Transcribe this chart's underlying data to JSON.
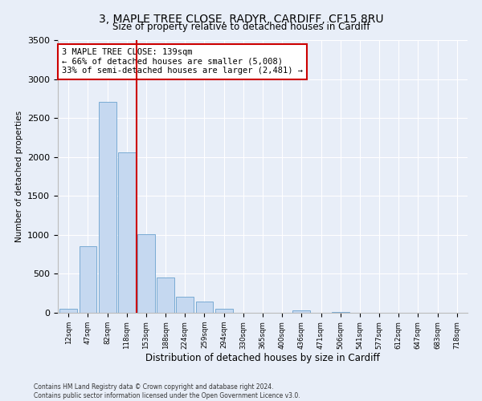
{
  "title": "3, MAPLE TREE CLOSE, RADYR, CARDIFF, CF15 8RU",
  "subtitle": "Size of property relative to detached houses in Cardiff",
  "xlabel": "Distribution of detached houses by size in Cardiff",
  "ylabel": "Number of detached properties",
  "bar_labels": [
    "12sqm",
    "47sqm",
    "82sqm",
    "118sqm",
    "153sqm",
    "188sqm",
    "224sqm",
    "259sqm",
    "294sqm",
    "330sqm",
    "365sqm",
    "400sqm",
    "436sqm",
    "471sqm",
    "506sqm",
    "541sqm",
    "577sqm",
    "612sqm",
    "647sqm",
    "683sqm",
    "718sqm"
  ],
  "bar_values": [
    55,
    850,
    2710,
    2060,
    1010,
    455,
    210,
    145,
    55,
    0,
    0,
    0,
    30,
    0,
    15,
    0,
    0,
    0,
    0,
    0,
    0
  ],
  "bar_color": "#c5d8f0",
  "bar_edge_color": "#7aabd4",
  "ylim": [
    0,
    3500
  ],
  "yticks": [
    0,
    500,
    1000,
    1500,
    2000,
    2500,
    3000,
    3500
  ],
  "property_line_color": "#cc0000",
  "annotation_title": "3 MAPLE TREE CLOSE: 139sqm",
  "annotation_line1": "← 66% of detached houses are smaller (5,008)",
  "annotation_line2": "33% of semi-detached houses are larger (2,481) →",
  "annotation_box_color": "#cc0000",
  "footer_line1": "Contains HM Land Registry data © Crown copyright and database right 2024.",
  "footer_line2": "Contains public sector information licensed under the Open Government Licence v3.0.",
  "background_color": "#e8eef8",
  "plot_bg_color": "#e8eef8",
  "grid_color": "#ffffff"
}
